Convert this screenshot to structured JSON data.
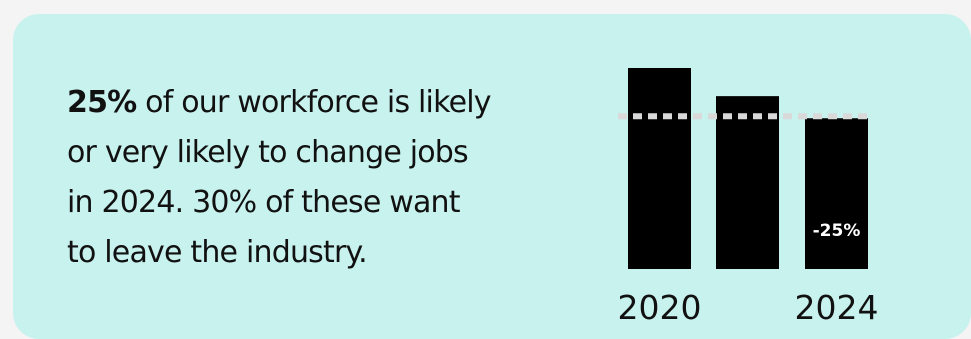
{
  "card": {
    "background": "#c8f2ee"
  },
  "statement": {
    "highlight": "25%",
    "line1_rest": " of our workforce is likely",
    "line2": "or very likely to change jobs",
    "line3": "in 2024. 30% of these want",
    "line4": "to leave the industry."
  },
  "chart_data": {
    "type": "bar",
    "categories": [
      "2020",
      "",
      "2024"
    ],
    "values": [
      100,
      86,
      75
    ],
    "ylim": [
      0,
      100
    ],
    "reference_line": {
      "value": 75,
      "style": "dotted",
      "color": "#d9d9d9"
    },
    "data_labels": [
      "",
      "",
      "-25%"
    ],
    "tick_labels": [
      "2020",
      "",
      "2024"
    ],
    "bar_color": "#000000",
    "grid": false,
    "legend": "none"
  }
}
